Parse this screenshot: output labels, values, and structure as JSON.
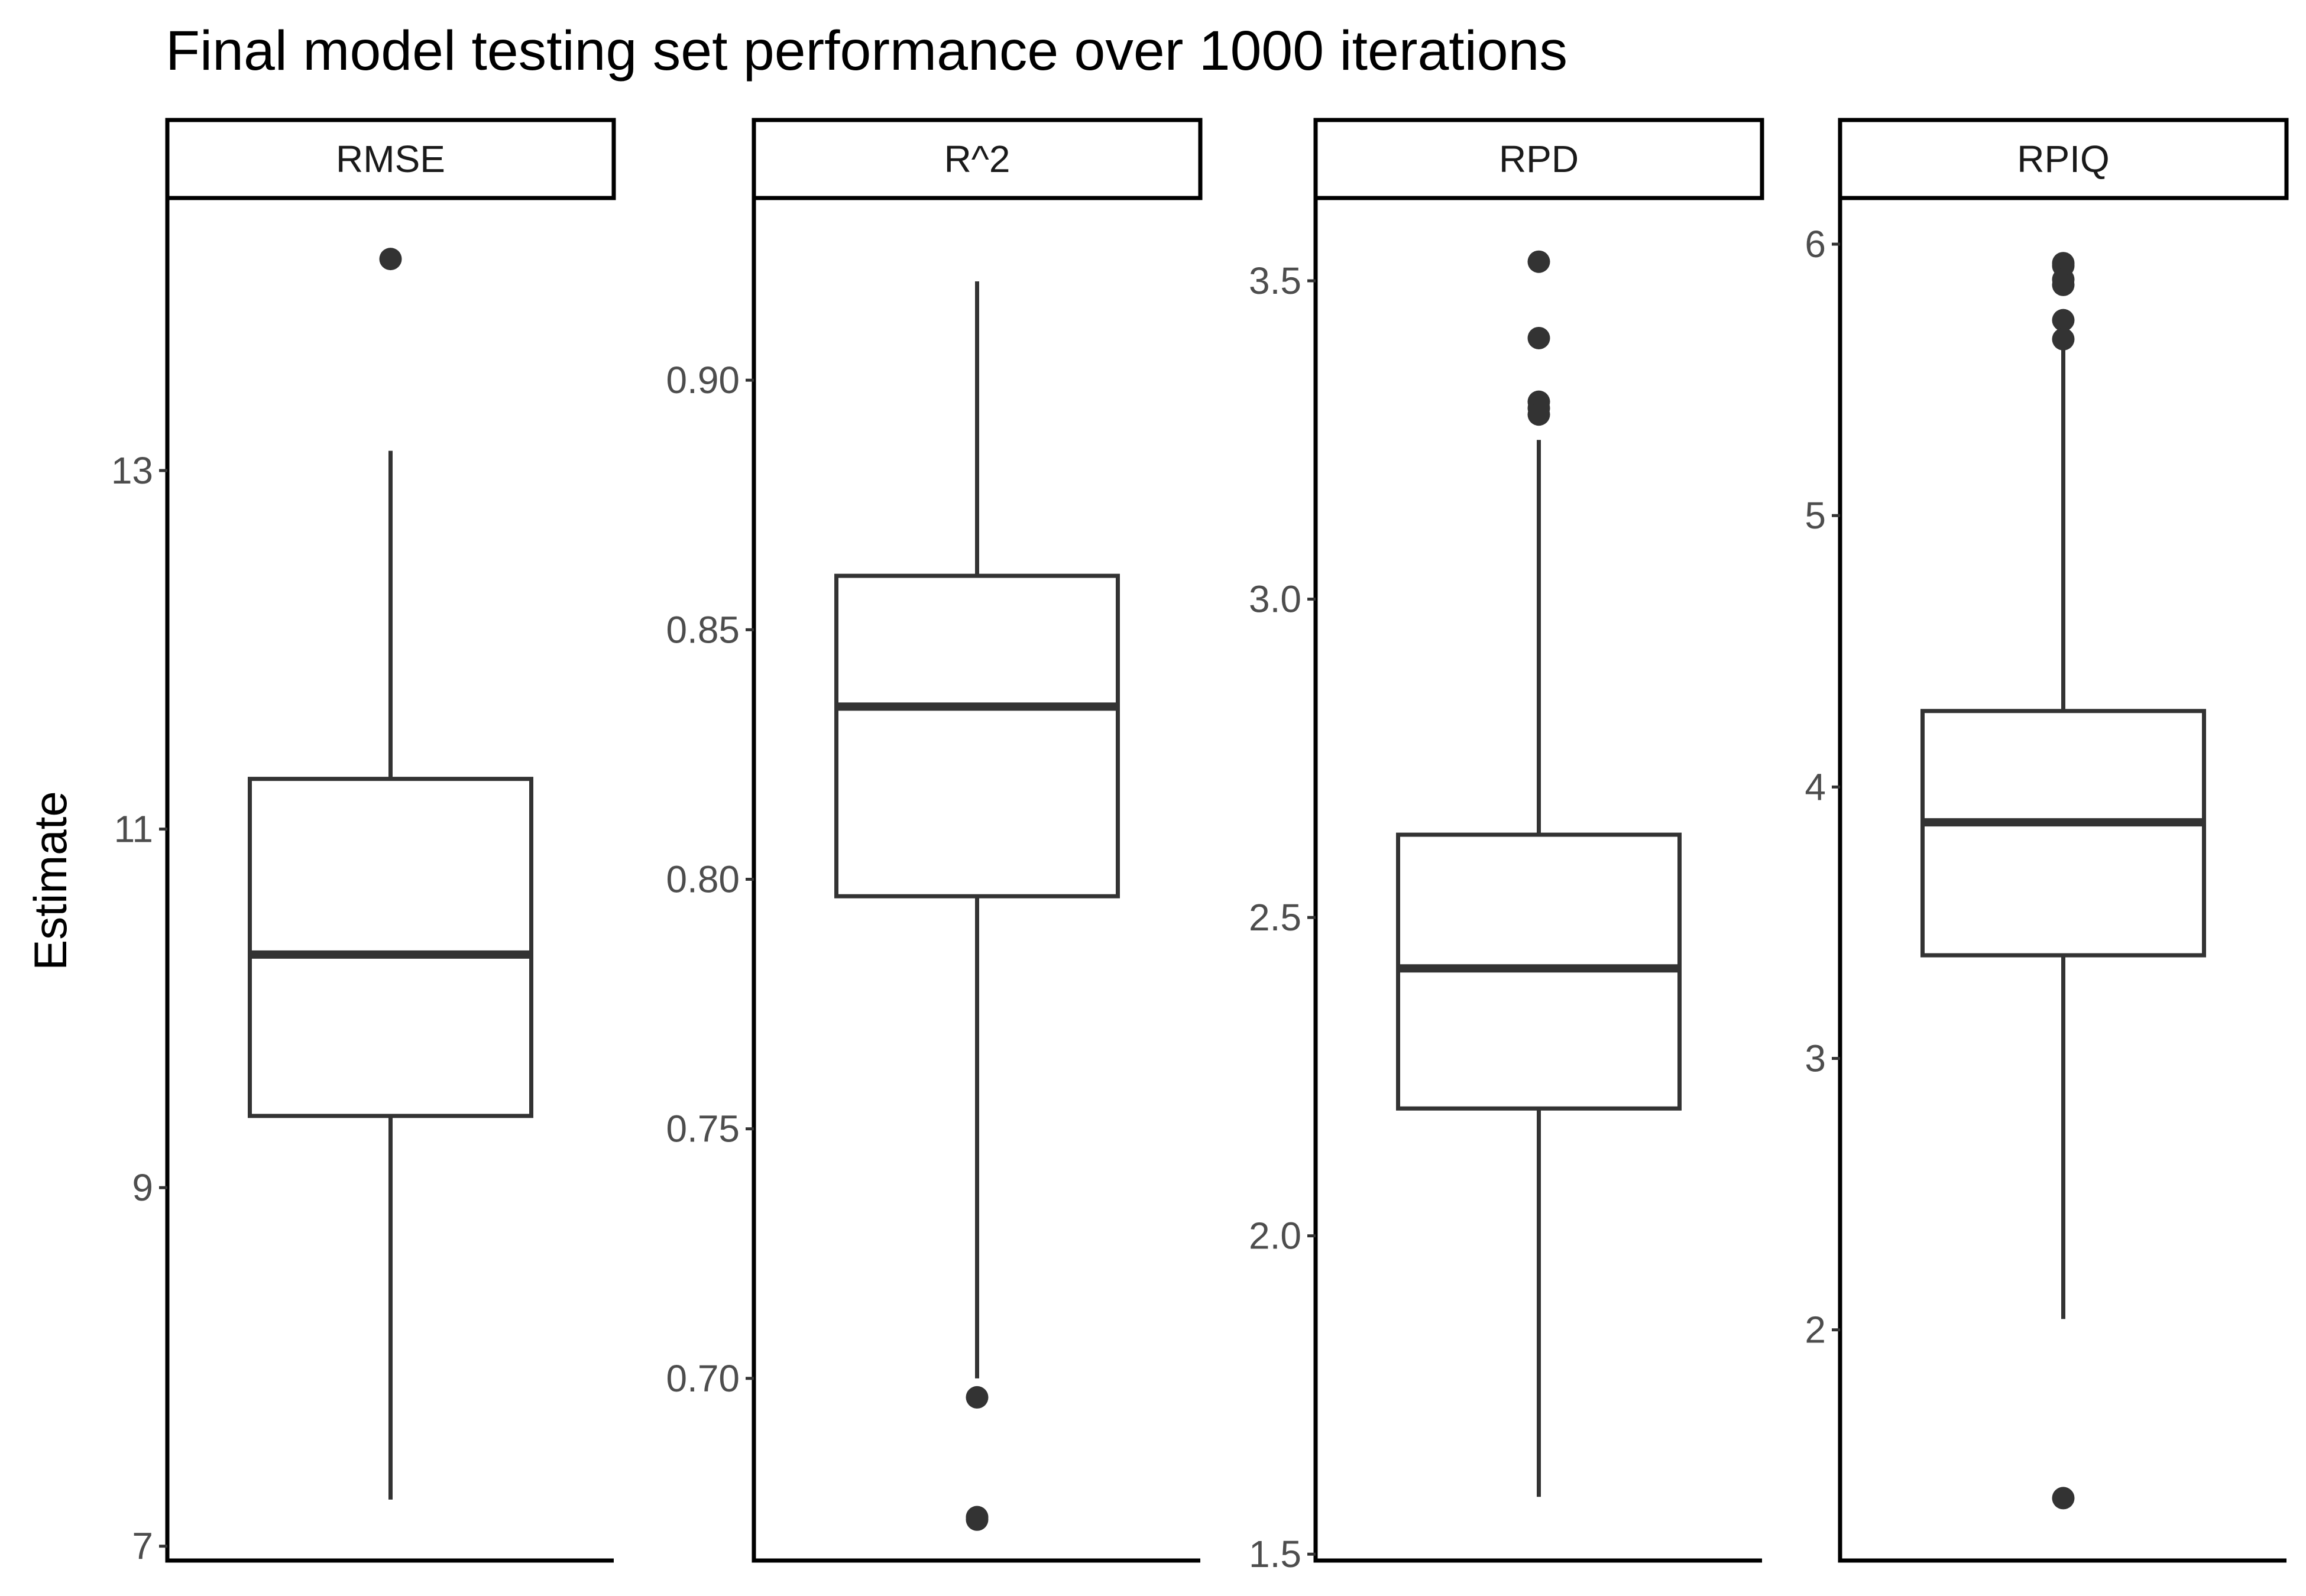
{
  "chart_data": {
    "type": "boxplot",
    "title": "Final model testing set performance over 1000 iterations",
    "ylabel": "Estimate",
    "xlabel": "",
    "grid": false,
    "legend": "none",
    "colors": {
      "box_stroke": "#333333",
      "axis": "#000000",
      "tick_text": "#4d4d4d",
      "background": "#ffffff"
    },
    "facets": [
      {
        "name": "RMSE",
        "ylim": [
          6.92,
          14.52
        ],
        "ticks": [
          7,
          9,
          11,
          13
        ],
        "tick_labels": [
          "7",
          "9",
          "11",
          "13"
        ],
        "whisker_low": 7.26,
        "q1": 9.4,
        "median": 10.3,
        "q3": 11.28,
        "whisker_high": 13.11,
        "outliers": [
          14.18
        ]
      },
      {
        "name": "R^2",
        "ylim": [
          0.6635,
          0.9365
        ],
        "ticks": [
          0.7,
          0.75,
          0.8,
          0.85,
          0.9
        ],
        "tick_labels": [
          "0.70",
          "0.75",
          "0.80",
          "0.85",
          "0.90"
        ],
        "whisker_low": 0.7,
        "q1": 0.7966,
        "median": 0.8346,
        "q3": 0.8608,
        "whisker_high": 0.9198,
        "outliers": [
          0.6962,
          0.6722,
          0.6717
        ]
      },
      {
        "name": "RPD",
        "ylim": [
          1.49,
          3.63
        ],
        "ticks": [
          1.5,
          2.0,
          2.5,
          3.0,
          3.5
        ],
        "tick_labels": [
          "1.5",
          "2.0",
          "2.5",
          "3.0",
          "3.5"
        ],
        "whisker_low": 1.59,
        "q1": 2.2,
        "median": 2.42,
        "q3": 2.63,
        "whisker_high": 3.25,
        "outliers": [
          3.53,
          3.41,
          3.31,
          3.3,
          3.29
        ]
      },
      {
        "name": "RPIQ",
        "ylim": [
          1.15,
          6.17
        ],
        "ticks": [
          2,
          3,
          4,
          5,
          6
        ],
        "tick_labels": [
          "2",
          "3",
          "4",
          "5",
          "6"
        ],
        "whisker_low": 2.04,
        "q1": 3.38,
        "median": 3.87,
        "q3": 4.28,
        "whisker_high": 5.65,
        "outliers": [
          5.93,
          5.92,
          5.87,
          5.85,
          5.72,
          5.65,
          1.38
        ]
      }
    ]
  }
}
